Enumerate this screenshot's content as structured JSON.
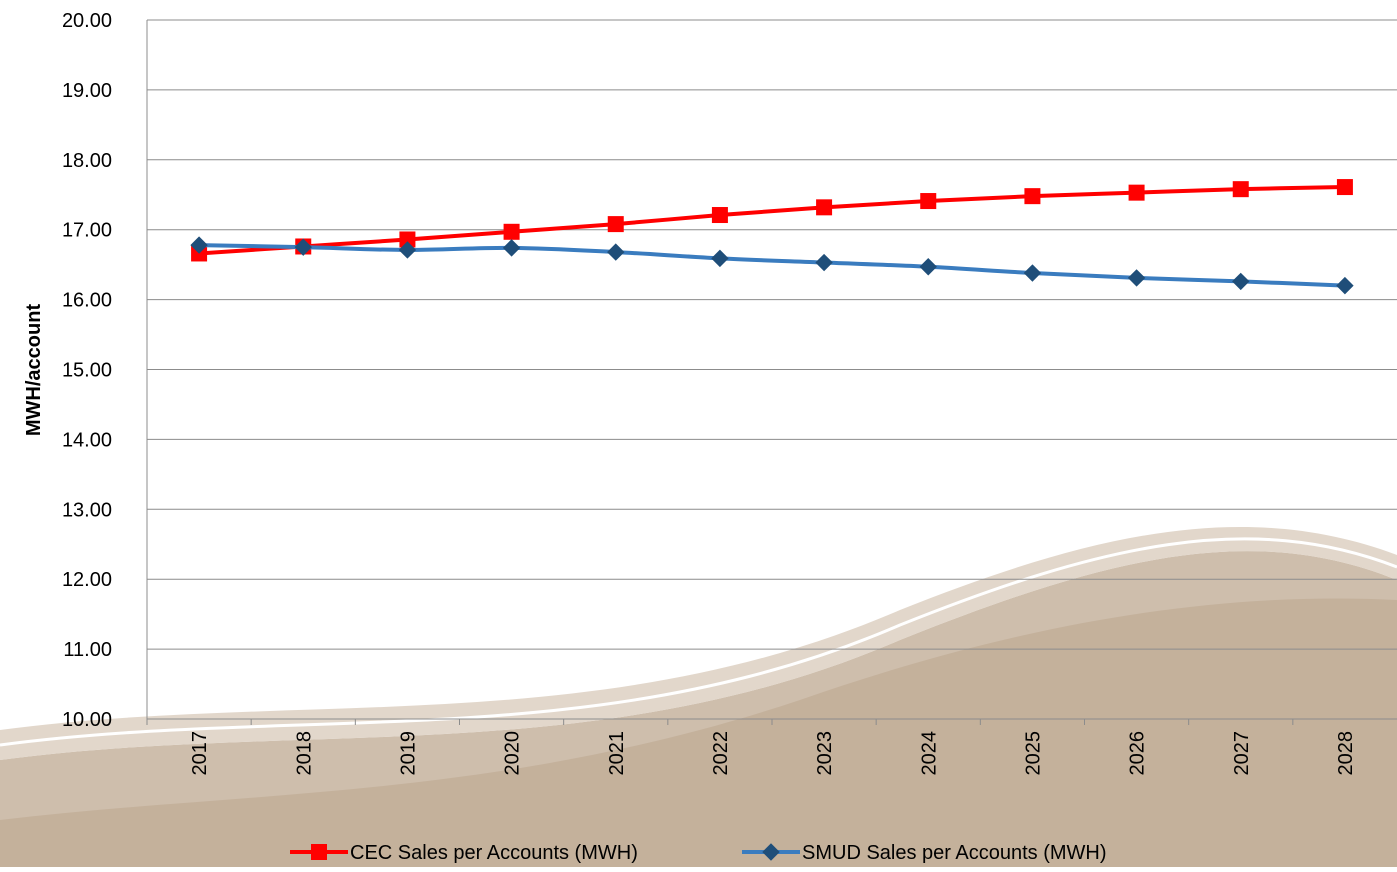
{
  "chart_data": {
    "type": "line",
    "title": "",
    "xlabel": "",
    "ylabel": "MWH/account",
    "ylim": [
      10,
      20
    ],
    "y_ticks": [
      "10.00",
      "11.00",
      "12.00",
      "13.00",
      "14.00",
      "15.00",
      "16.00",
      "17.00",
      "18.00",
      "19.00",
      "20.00"
    ],
    "categories": [
      "2017",
      "2018",
      "2019",
      "2020",
      "2021",
      "2022",
      "2023",
      "2024",
      "2025",
      "2026",
      "2027",
      "2028"
    ],
    "grid": "horizontal",
    "legend_position": "bottom",
    "series": [
      {
        "name": "CEC Sales per Accounts (MWH)",
        "color": "#ff0000",
        "marker": "square",
        "values": [
          16.66,
          16.76,
          16.86,
          16.97,
          17.08,
          17.21,
          17.32,
          17.41,
          17.48,
          17.53,
          17.58,
          17.61
        ]
      },
      {
        "name": "SMUD Sales per Accounts (MWH)",
        "color": "#3a7cbf",
        "marker": "diamond",
        "values": [
          16.78,
          16.75,
          16.71,
          16.74,
          16.68,
          16.59,
          16.53,
          16.47,
          16.38,
          16.31,
          16.26,
          16.2
        ]
      }
    ]
  }
}
